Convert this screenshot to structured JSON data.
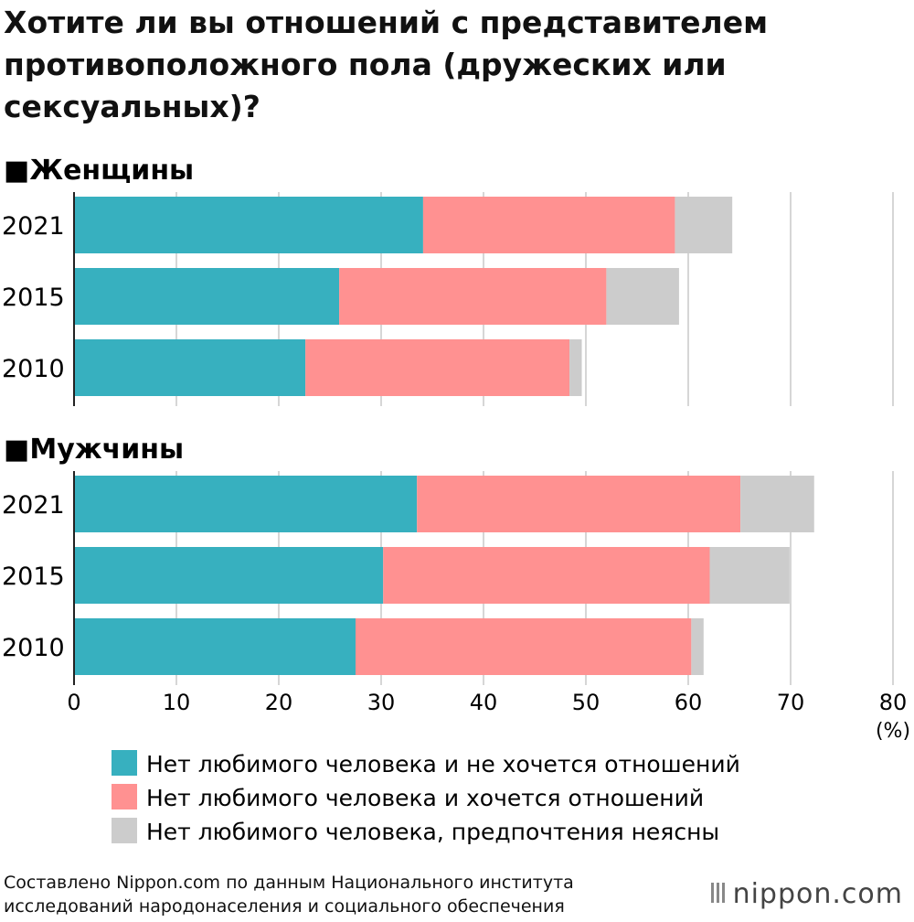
{
  "chart_data": {
    "type": "bar",
    "stacked": true,
    "orientation": "horizontal",
    "title": "Хотите ли вы отношений с представителем противоположного пола (дружеских или сексуальных)?",
    "xlabel": "(%)",
    "xlim": [
      0,
      80
    ],
    "xticks": [
      0,
      10,
      20,
      30,
      40,
      50,
      60,
      70,
      80
    ],
    "grid": true,
    "legend_placement": "bottom",
    "series_names": [
      "Нет любимого человека и не хочется отношений",
      "Нет любимого человека и хочется отношений",
      "Нет любимого человека, предпочтения неясны"
    ],
    "colors": [
      "#37b0bf",
      "#ff9191",
      "#cccccc"
    ],
    "groups": [
      {
        "name": "■Женщины",
        "categories": [
          "2021",
          "2015",
          "2010"
        ],
        "values": [
          [
            34.1,
            24.6,
            5.6
          ],
          [
            25.9,
            26.1,
            7.1
          ],
          [
            22.6,
            25.8,
            1.2
          ]
        ]
      },
      {
        "name": "■Мужчины",
        "categories": [
          "2021",
          "2015",
          "2010"
        ],
        "values": [
          [
            33.5,
            31.6,
            7.2
          ],
          [
            30.2,
            31.9,
            7.8
          ],
          [
            27.5,
            32.8,
            1.2
          ]
        ]
      }
    ]
  },
  "source": [
    "Составлено Nippon.com по данным Национального института",
    "исследований народонаселения и социального обеспечения"
  ],
  "logo": "nippon.com"
}
